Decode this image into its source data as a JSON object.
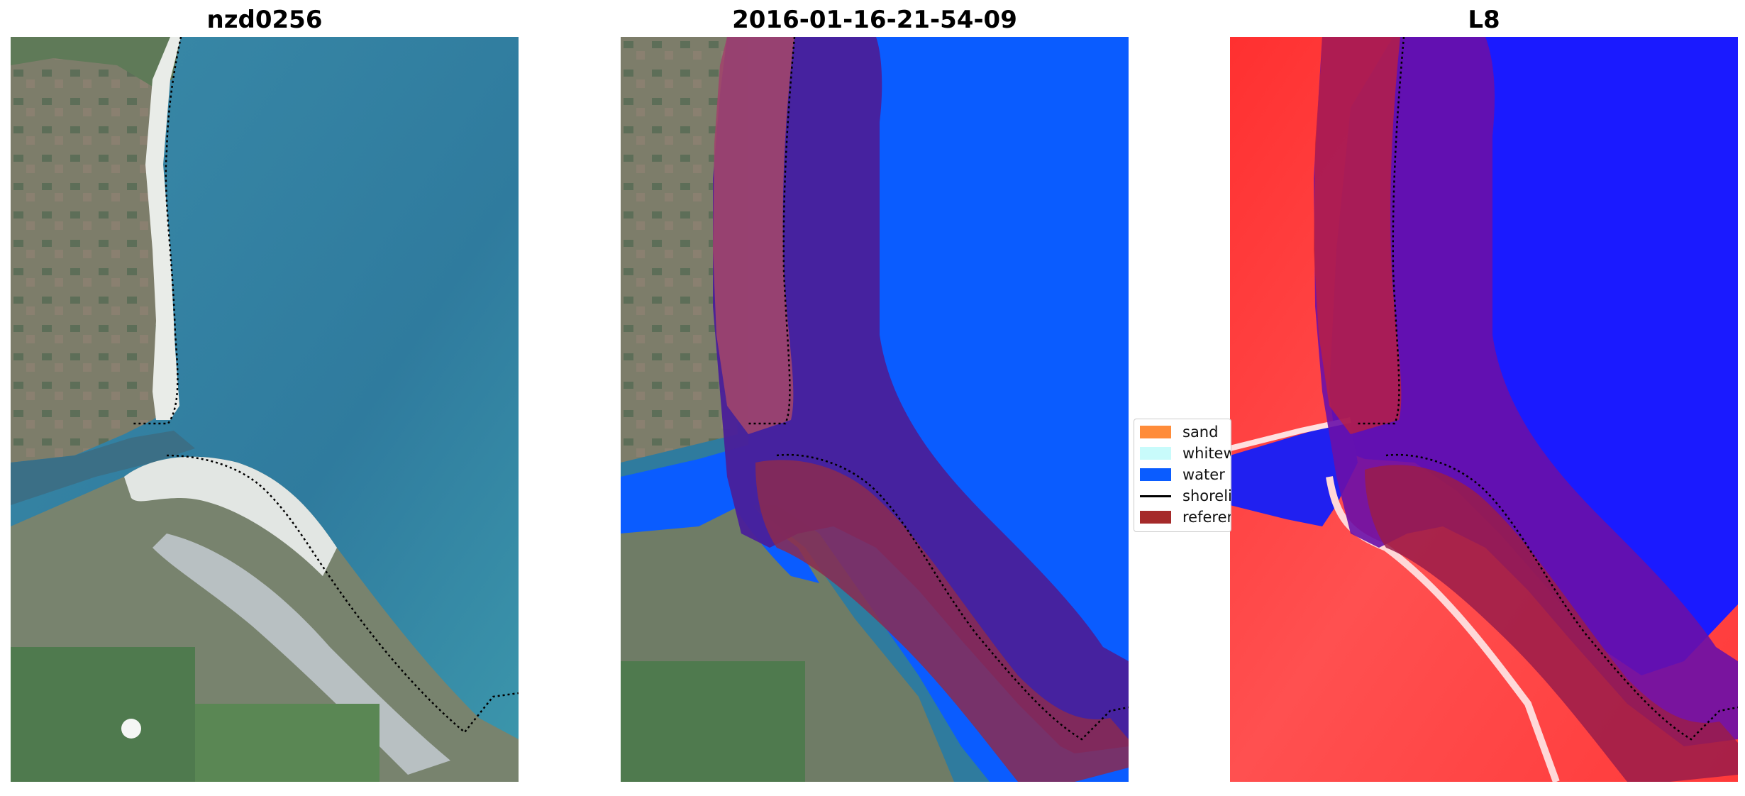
{
  "panels": [
    {
      "title": "nzd0256"
    },
    {
      "title": "2016-01-16-21-54-09"
    },
    {
      "title": "L8"
    }
  ],
  "legend": {
    "items": [
      {
        "label": "sand",
        "color": "#ff8c3a",
        "kind": "patch"
      },
      {
        "label": "whitewater",
        "color": "#c8fbfb",
        "kind": "patch"
      },
      {
        "label": "water",
        "color": "#0a5cff",
        "kind": "patch"
      },
      {
        "label": "shoreline",
        "color": "#000000",
        "kind": "line"
      },
      {
        "label": "reference",
        "color": "#a52a2a",
        "kind": "patch"
      }
    ]
  },
  "colors": {
    "ocean": "#2f7b9e",
    "ocean_light": "#4fa2bd",
    "land": "#6b7a63",
    "water_class": "#0a5cff",
    "reference_overlay": "#a52a2a",
    "mndwi_land": "#ff3a3a",
    "mndwi_water": "#1010ff"
  }
}
